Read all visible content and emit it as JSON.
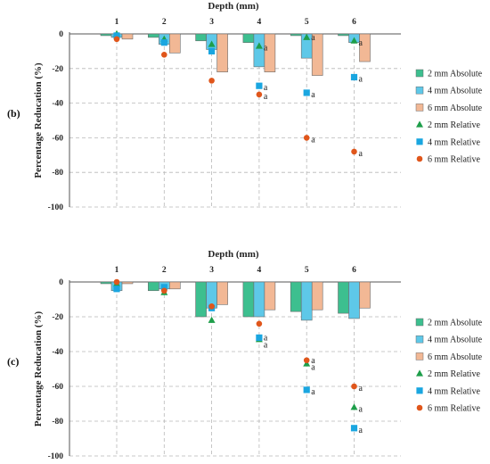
{
  "chart_data": [
    {
      "type": "bar",
      "panel_label": "(b)",
      "title": "Depth (mm)",
      "ylabel": "Percentage Reducation (%)",
      "categories": [
        "1",
        "2",
        "3",
        "4",
        "5",
        "6"
      ],
      "yticks": [
        "0",
        "-20",
        "-40",
        "-60",
        "-80",
        "-100"
      ],
      "ylim": [
        -100,
        0
      ],
      "grid": "dashed",
      "legend_position": "right",
      "series": [
        {
          "name": "2 mm Absolute",
          "kind": "bar",
          "color": "#3dbf8f",
          "values": [
            -1,
            -2,
            -4,
            -5,
            -1,
            -1
          ]
        },
        {
          "name": "4 mm Absolute",
          "kind": "bar",
          "color": "#5ec8e8",
          "values": [
            -2,
            -6,
            -9,
            -19,
            -14,
            -5
          ]
        },
        {
          "name": "6 mm Absolute",
          "kind": "bar",
          "color": "#f2b895",
          "values": [
            -3,
            -11,
            -22,
            -22,
            -24,
            -16
          ]
        },
        {
          "name": "2 mm Relative",
          "kind": "marker",
          "marker": "triangle",
          "color": "#1e9e4a",
          "values": [
            0,
            -3,
            -6,
            -7,
            -2,
            -4
          ]
        },
        {
          "name": "4 mm Relative",
          "kind": "marker",
          "marker": "square",
          "color": "#1aa6e0",
          "values": [
            -1,
            -5,
            -10,
            -30,
            -34,
            -25
          ]
        },
        {
          "name": "6 mm Relative",
          "kind": "marker",
          "marker": "circle",
          "color": "#e0561b",
          "values": [
            -3,
            -12,
            -27,
            -35,
            -60,
            -68
          ]
        }
      ],
      "annotations": [
        {
          "category": "4",
          "value": -7,
          "text": "a"
        },
        {
          "category": "4",
          "value": -30,
          "text": "a"
        },
        {
          "category": "4",
          "value": -35,
          "text": "a"
        },
        {
          "category": "5",
          "value": -1,
          "text": "a"
        },
        {
          "category": "5",
          "value": -34,
          "text": "a"
        },
        {
          "category": "5",
          "value": -60,
          "text": "a"
        },
        {
          "category": "6",
          "value": -4,
          "text": "a"
        },
        {
          "category": "6",
          "value": -25,
          "text": "a"
        },
        {
          "category": "6",
          "value": -68,
          "text": "a"
        }
      ]
    },
    {
      "type": "bar",
      "panel_label": "(c)",
      "title": "Depth (mm)",
      "ylabel": "Percentage Reducation (%)",
      "categories": [
        "1",
        "2",
        "3",
        "4",
        "5",
        "6"
      ],
      "yticks": [
        "0",
        "-20",
        "-40",
        "-60",
        "-80",
        "-100"
      ],
      "ylim": [
        -100,
        0
      ],
      "grid": "dashed",
      "legend_position": "right",
      "series": [
        {
          "name": "2 mm Absolute",
          "kind": "bar",
          "color": "#3dbf8f",
          "values": [
            -1,
            -5,
            -20,
            -20,
            -17,
            -18
          ]
        },
        {
          "name": "4 mm Absolute",
          "kind": "bar",
          "color": "#5ec8e8",
          "values": [
            -5,
            -4,
            -15,
            -20,
            -22,
            -21
          ]
        },
        {
          "name": "6 mm Absolute",
          "kind": "bar",
          "color": "#f2b895",
          "values": [
            -1,
            -4,
            -13,
            -16,
            -16,
            -15
          ]
        },
        {
          "name": "2 mm Relative",
          "kind": "marker",
          "marker": "triangle",
          "color": "#1e9e4a",
          "values": [
            -1,
            -6,
            -22,
            -33,
            -47,
            -72
          ]
        },
        {
          "name": "4 mm Relative",
          "kind": "marker",
          "marker": "square",
          "color": "#1aa6e0",
          "values": [
            -4,
            -3,
            -15,
            -32,
            -62,
            -84
          ]
        },
        {
          "name": "6 mm Relative",
          "kind": "marker",
          "marker": "circle",
          "color": "#e0561b",
          "values": [
            0,
            -5,
            -14,
            -24,
            -45,
            -60
          ]
        }
      ],
      "annotations": [
        {
          "category": "4",
          "value": -31,
          "text": "a"
        },
        {
          "category": "4",
          "value": -35,
          "text": "a"
        },
        {
          "category": "5",
          "value": -44,
          "text": "a"
        },
        {
          "category": "5",
          "value": -48,
          "text": "a"
        },
        {
          "category": "5",
          "value": -62,
          "text": "a"
        },
        {
          "category": "6",
          "value": -60,
          "text": "a"
        },
        {
          "category": "6",
          "value": -72,
          "text": "a"
        },
        {
          "category": "6",
          "value": -84,
          "text": "a"
        }
      ]
    }
  ]
}
